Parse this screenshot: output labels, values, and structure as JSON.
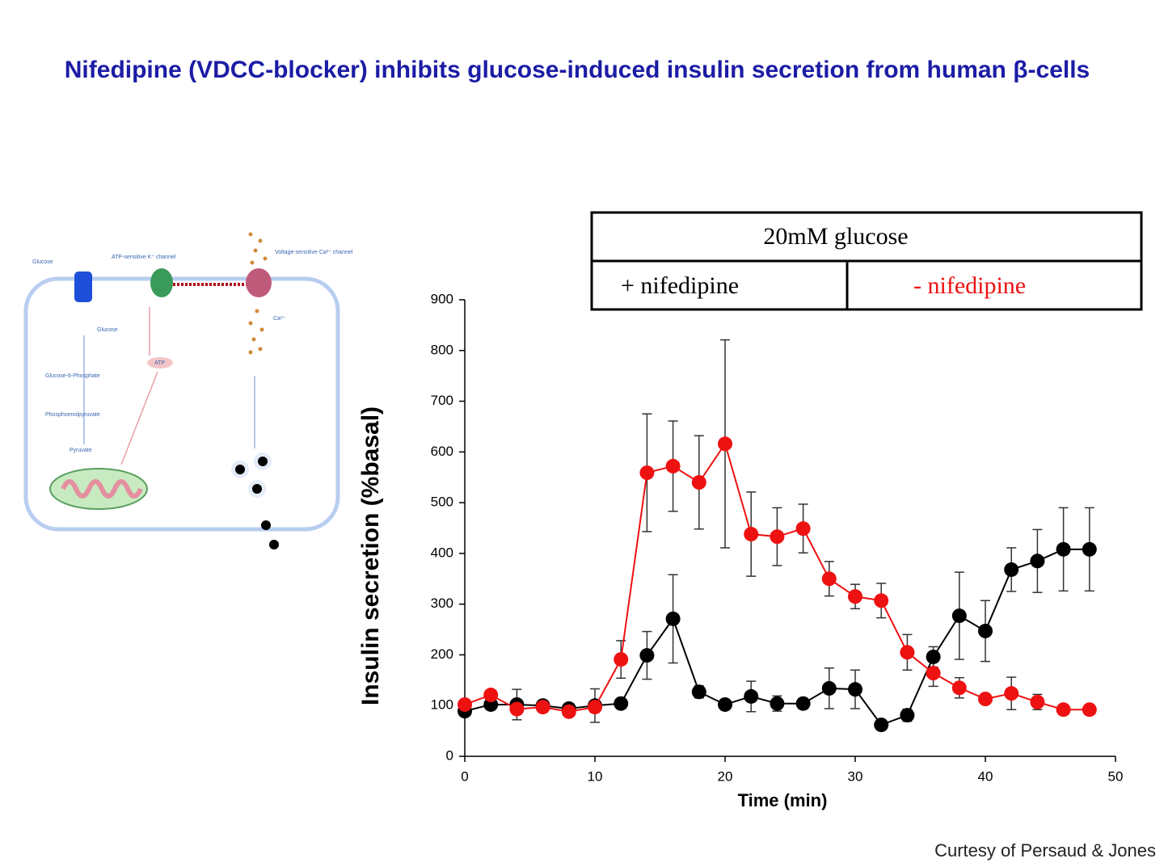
{
  "title": "Nifedipine (VDCC-blocker) inhibits glucose-induced insulin secretion from human β-cells",
  "credit": "Curtesy of Persaud & Jones",
  "diagram": {
    "labels": [
      "Glucose",
      "ATP-sensitive K⁺ channel",
      "Voltage-sensitive Ca²⁺ channel",
      "Glucose",
      "Glucose-6-Phosphate",
      "Phosphoenolpyruvate",
      "Pyruvate",
      "ATP",
      "Ca²⁺"
    ]
  },
  "chart_data": {
    "type": "line",
    "annotation": "20mM glucose",
    "xlabel": "Time (min)",
    "ylabel": "Insulin secretion (%basal)",
    "x": [
      0,
      2,
      4,
      6,
      8,
      10,
      12,
      14,
      16,
      18,
      20,
      22,
      24,
      26,
      28,
      30,
      32,
      34,
      36,
      38,
      40,
      42,
      44,
      46,
      48
    ],
    "xlim": [
      0,
      50
    ],
    "xticks": [
      0,
      10,
      20,
      30,
      40,
      50
    ],
    "ylim": [
      0,
      900
    ],
    "yticks": [
      0,
      100,
      200,
      300,
      400,
      500,
      600,
      700,
      800,
      900
    ],
    "series": [
      {
        "name": "+ nifedipine",
        "color": "#000000",
        "values": [
          89,
          102,
          102,
          100,
          94,
          100,
          104,
          199,
          271,
          127,
          102,
          118,
          104,
          104,
          134,
          132,
          62,
          81,
          196,
          277,
          247,
          368,
          385,
          408,
          408
        ],
        "errors": [
          8,
          8,
          30,
          10,
          10,
          33,
          8,
          47,
          87,
          12,
          10,
          30,
          15,
          10,
          40,
          38,
          8,
          12,
          20,
          86,
          60,
          43,
          62,
          82,
          82
        ]
      },
      {
        "name": "- nifedipine",
        "color": "#ee1111",
        "values": [
          102,
          121,
          93,
          97,
          88,
          97,
          191,
          559,
          572,
          540,
          616,
          438,
          433,
          449,
          350,
          315,
          307,
          205,
          164,
          135,
          113,
          124,
          107,
          92,
          92
        ],
        "errors": [
          5,
          8,
          10,
          5,
          5,
          10,
          37,
          116,
          89,
          92,
          205,
          83,
          57,
          48,
          34,
          24,
          34,
          35,
          26,
          20,
          10,
          32,
          15,
          5,
          5
        ]
      }
    ]
  }
}
